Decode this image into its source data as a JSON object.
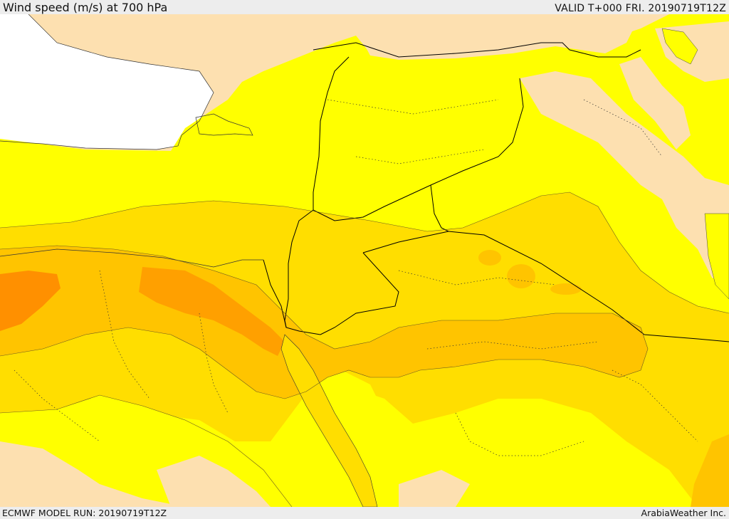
{
  "header": {
    "title": "Wind speed (m/s) at 700 hPa",
    "valid": "VALID T+000 FRI. 20190719T12Z"
  },
  "footer": {
    "model_run": "ECMWF MODEL RUN: 20190719T12Z",
    "credit": "ArabiaWeather Inc."
  },
  "map": {
    "field": "wind speed at 700 hPa",
    "colors": {
      "sea": "#ffffff",
      "land_low": "#fde0b0",
      "band_yellow": "#ffff00",
      "band_gold": "#ffde00",
      "band_amber": "#ffc400",
      "band_orange": "#ffa000",
      "band_dark_orange": "#ff9000",
      "borders": "#000000"
    }
  }
}
